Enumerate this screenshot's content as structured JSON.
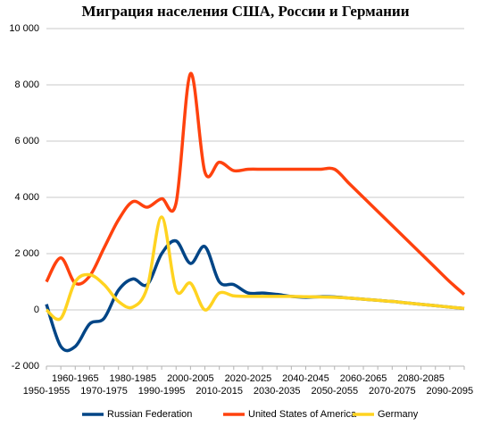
{
  "chart_data": {
    "type": "line",
    "title": "Миграция населения США, России и Германии",
    "categories": [
      "1950-1955",
      null,
      "1960-1965",
      null,
      "1970-1975",
      null,
      "1980-1985",
      null,
      "1990-1995",
      null,
      "2000-2005",
      null,
      "2010-2015",
      null,
      "2020-2025",
      null,
      "2030-2035",
      null,
      "2040-2045",
      null,
      "2050-2055",
      null,
      "2060-2065",
      null,
      "2070-2075",
      null,
      "2080-2085",
      null,
      "2090-2095",
      null
    ],
    "series": [
      {
        "name": "Russian Federation",
        "color": "#004586",
        "values": [
          200,
          -1300,
          -1300,
          -500,
          -300,
          700,
          1100,
          900,
          2000,
          2450,
          1650,
          2250,
          1000,
          900,
          600,
          600,
          550,
          480,
          450,
          470,
          460,
          420,
          380,
          340,
          300,
          250,
          200,
          150,
          100,
          50
        ]
      },
      {
        "name": "United States of America",
        "color": "#ff420e",
        "values": [
          1000,
          1850,
          950,
          1200,
          2200,
          3200,
          3850,
          3650,
          3950,
          3800,
          8400,
          4900,
          5250,
          4950,
          5000,
          5000,
          5000,
          5000,
          5000,
          5000,
          5000,
          4500,
          4000,
          3500,
          3000,
          2500,
          2000,
          1500,
          1000,
          550
        ]
      },
      {
        "name": "Germany",
        "color": "#ffd320",
        "values": [
          0,
          -300,
          1000,
          1250,
          900,
          300,
          100,
          800,
          3300,
          700,
          950,
          0,
          600,
          500,
          480,
          480,
          480,
          480,
          470,
          460,
          450,
          420,
          380,
          340,
          300,
          250,
          200,
          150,
          100,
          50
        ]
      }
    ],
    "ylim": [
      -2000,
      10000
    ],
    "yticks": [
      {
        "value": -2000,
        "label": "-2 000"
      },
      0,
      {
        "value": 2000,
        "label": "2 000"
      },
      {
        "value": 4000,
        "label": "4 000"
      },
      {
        "value": 6000,
        "label": "6 000"
      },
      {
        "value": 8000,
        "label": "8 000"
      },
      {
        "value": 10000,
        "label": "10 000"
      }
    ],
    "grid": true,
    "legend": "bottom"
  }
}
